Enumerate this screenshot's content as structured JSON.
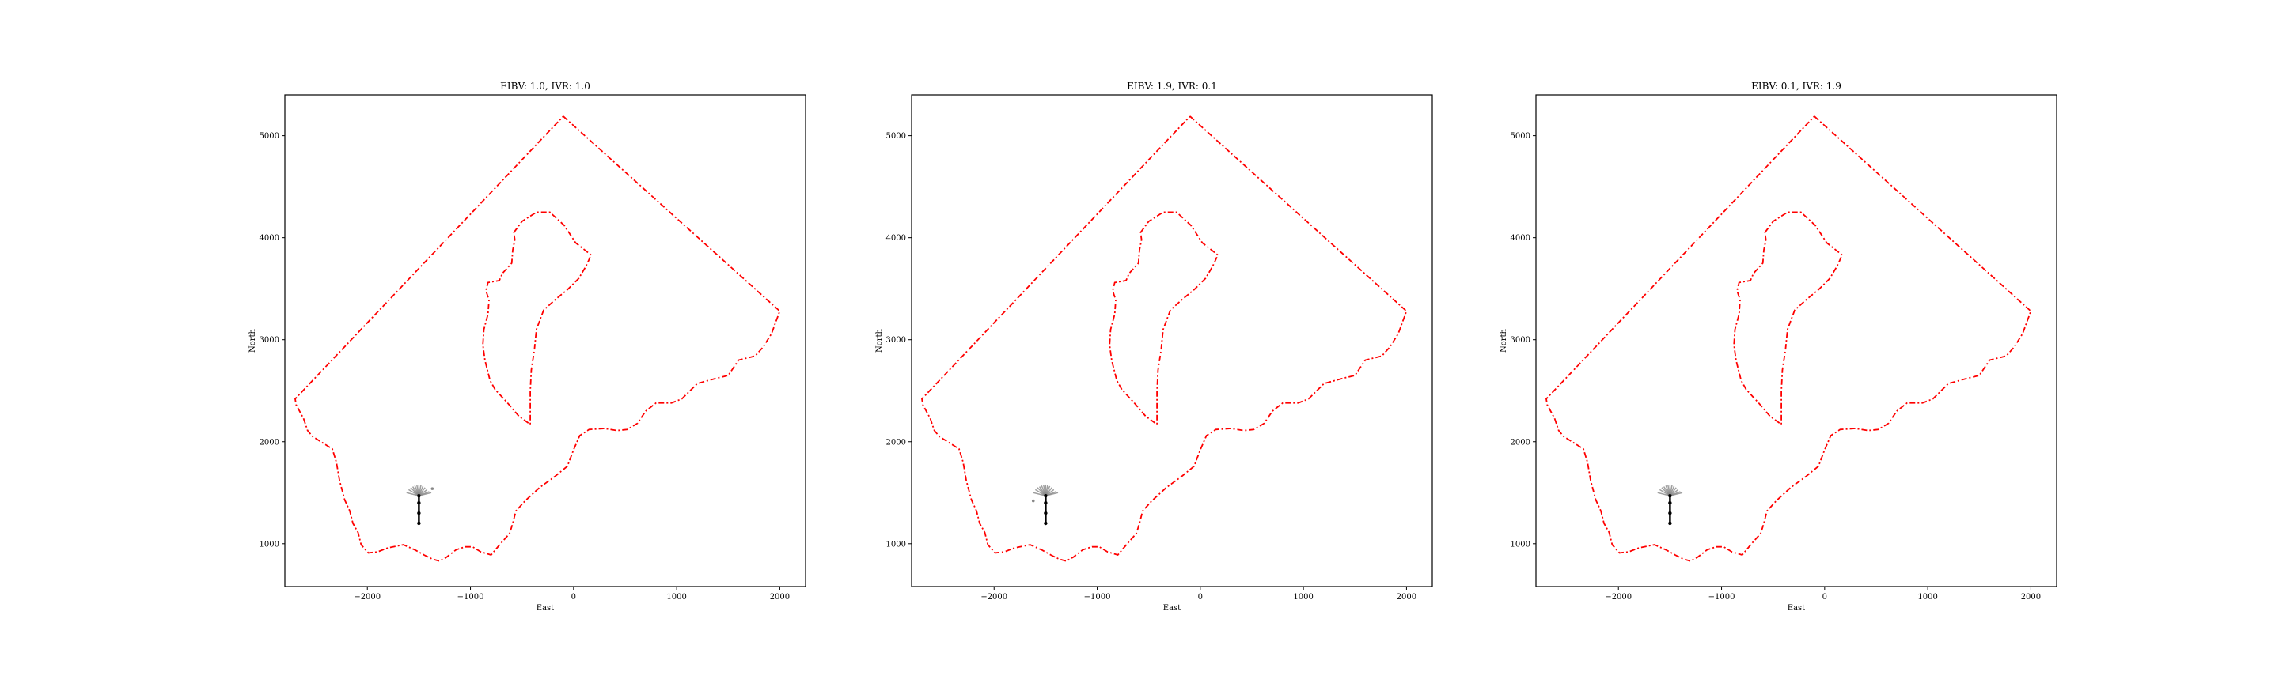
{
  "colors": {
    "boundary": "#ff0000",
    "path": "#000000",
    "fan": "#888888",
    "axis": "#000000",
    "background": "#ffffff"
  },
  "chart_data": [
    {
      "type": "line",
      "title": "EIBV: 1.0, IVR: 1.0",
      "xlabel": "East",
      "ylabel": "North",
      "xlim": [
        -2800,
        2250
      ],
      "ylim": [
        580,
        5400
      ],
      "xticks": [
        -2000,
        -1000,
        0,
        1000,
        2000
      ],
      "xtick_labels": [
        "−2000",
        "−1000",
        "0",
        "1000",
        "2000"
      ],
      "yticks": [
        1000,
        2000,
        3000,
        4000,
        5000
      ],
      "ytick_labels": [
        "1000",
        "2000",
        "3000",
        "4000",
        "5000"
      ],
      "grid": false,
      "outer_boundary": [
        [
          -100,
          5190
        ],
        [
          2000,
          3280
        ],
        [
          1920,
          3060
        ],
        [
          1840,
          2930
        ],
        [
          1760,
          2840
        ],
        [
          1600,
          2800
        ],
        [
          1500,
          2650
        ],
        [
          1380,
          2620
        ],
        [
          1200,
          2570
        ],
        [
          1050,
          2420
        ],
        [
          950,
          2380
        ],
        [
          800,
          2380
        ],
        [
          700,
          2300
        ],
        [
          620,
          2180
        ],
        [
          520,
          2120
        ],
        [
          420,
          2110
        ],
        [
          300,
          2130
        ],
        [
          150,
          2120
        ],
        [
          60,
          2060
        ],
        [
          0,
          1920
        ],
        [
          -60,
          1760
        ],
        [
          -180,
          1660
        ],
        [
          -330,
          1550
        ],
        [
          -470,
          1420
        ],
        [
          -560,
          1320
        ],
        [
          -590,
          1200
        ],
        [
          -620,
          1100
        ],
        [
          -700,
          1010
        ],
        [
          -800,
          890
        ],
        [
          -900,
          920
        ],
        [
          -980,
          970
        ],
        [
          -1050,
          970
        ],
        [
          -1140,
          940
        ],
        [
          -1230,
          870
        ],
        [
          -1300,
          830
        ],
        [
          -1370,
          850
        ],
        [
          -1450,
          890
        ],
        [
          -1540,
          940
        ],
        [
          -1650,
          990
        ],
        [
          -1800,
          960
        ],
        [
          -1900,
          920
        ],
        [
          -1990,
          910
        ],
        [
          -2060,
          990
        ],
        [
          -2090,
          1110
        ],
        [
          -2140,
          1200
        ],
        [
          -2170,
          1320
        ],
        [
          -2220,
          1430
        ],
        [
          -2270,
          1620
        ],
        [
          -2300,
          1800
        ],
        [
          -2340,
          1930
        ],
        [
          -2420,
          1980
        ],
        [
          -2530,
          2050
        ],
        [
          -2580,
          2110
        ],
        [
          -2620,
          2230
        ],
        [
          -2690,
          2360
        ],
        [
          -2700,
          2420
        ],
        [
          -100,
          5190
        ]
      ],
      "inner_boundary": [
        [
          -580,
          4050
        ],
        [
          -500,
          4160
        ],
        [
          -360,
          4250
        ],
        [
          -230,
          4250
        ],
        [
          -90,
          4120
        ],
        [
          20,
          3950
        ],
        [
          170,
          3830
        ],
        [
          120,
          3720
        ],
        [
          50,
          3600
        ],
        [
          -60,
          3490
        ],
        [
          -170,
          3400
        ],
        [
          -290,
          3290
        ],
        [
          -360,
          3100
        ],
        [
          -380,
          2900
        ],
        [
          -410,
          2700
        ],
        [
          -420,
          2490
        ],
        [
          -420,
          2290
        ],
        [
          -420,
          2170
        ],
        [
          -530,
          2250
        ],
        [
          -640,
          2380
        ],
        [
          -760,
          2510
        ],
        [
          -810,
          2600
        ],
        [
          -860,
          2800
        ],
        [
          -880,
          2950
        ],
        [
          -870,
          3100
        ],
        [
          -830,
          3250
        ],
        [
          -820,
          3390
        ],
        [
          -850,
          3480
        ],
        [
          -830,
          3560
        ],
        [
          -720,
          3580
        ],
        [
          -690,
          3650
        ],
        [
          -600,
          3750
        ],
        [
          -590,
          3880
        ],
        [
          -570,
          3980
        ],
        [
          -580,
          4050
        ]
      ],
      "trajectory": [
        [
          -1500,
          1200
        ],
        [
          -1500,
          1300
        ],
        [
          -1500,
          1400
        ],
        [
          -1500,
          1470
        ]
      ],
      "fan_endpoints": [
        [
          -1620,
          1500
        ],
        [
          -1600,
          1530
        ],
        [
          -1580,
          1550
        ],
        [
          -1560,
          1560
        ],
        [
          -1540,
          1570
        ],
        [
          -1520,
          1575
        ],
        [
          -1500,
          1580
        ],
        [
          -1480,
          1575
        ],
        [
          -1460,
          1565
        ],
        [
          -1440,
          1550
        ],
        [
          -1420,
          1530
        ],
        [
          -1400,
          1510
        ],
        [
          -1380,
          1500
        ]
      ],
      "fan_marker": [
        -1370,
        1540
      ]
    },
    {
      "type": "line",
      "title": "EIBV: 1.9, IVR: 0.1",
      "xlabel": "East",
      "ylabel": "North",
      "xlim": [
        -2800,
        2250
      ],
      "ylim": [
        580,
        5400
      ],
      "xticks": [
        -2000,
        -1000,
        0,
        1000,
        2000
      ],
      "xtick_labels": [
        "−2000",
        "−1000",
        "0",
        "1000",
        "2000"
      ],
      "yticks": [
        1000,
        2000,
        3000,
        4000,
        5000
      ],
      "ytick_labels": [
        "1000",
        "2000",
        "3000",
        "4000",
        "5000"
      ],
      "grid": false,
      "outer_boundary": [
        [
          -100,
          5190
        ],
        [
          2000,
          3280
        ],
        [
          1920,
          3060
        ],
        [
          1840,
          2930
        ],
        [
          1760,
          2840
        ],
        [
          1600,
          2800
        ],
        [
          1500,
          2650
        ],
        [
          1380,
          2620
        ],
        [
          1200,
          2570
        ],
        [
          1050,
          2420
        ],
        [
          950,
          2380
        ],
        [
          800,
          2380
        ],
        [
          700,
          2300
        ],
        [
          620,
          2180
        ],
        [
          520,
          2120
        ],
        [
          420,
          2110
        ],
        [
          300,
          2130
        ],
        [
          150,
          2120
        ],
        [
          60,
          2060
        ],
        [
          0,
          1920
        ],
        [
          -60,
          1760
        ],
        [
          -180,
          1660
        ],
        [
          -330,
          1550
        ],
        [
          -470,
          1420
        ],
        [
          -560,
          1320
        ],
        [
          -590,
          1200
        ],
        [
          -620,
          1100
        ],
        [
          -700,
          1010
        ],
        [
          -800,
          890
        ],
        [
          -900,
          920
        ],
        [
          -980,
          970
        ],
        [
          -1050,
          970
        ],
        [
          -1140,
          940
        ],
        [
          -1230,
          870
        ],
        [
          -1300,
          830
        ],
        [
          -1370,
          850
        ],
        [
          -1450,
          890
        ],
        [
          -1540,
          940
        ],
        [
          -1650,
          990
        ],
        [
          -1800,
          960
        ],
        [
          -1900,
          920
        ],
        [
          -1990,
          910
        ],
        [
          -2060,
          990
        ],
        [
          -2090,
          1110
        ],
        [
          -2140,
          1200
        ],
        [
          -2170,
          1320
        ],
        [
          -2220,
          1430
        ],
        [
          -2270,
          1620
        ],
        [
          -2300,
          1800
        ],
        [
          -2340,
          1930
        ],
        [
          -2420,
          1980
        ],
        [
          -2530,
          2050
        ],
        [
          -2580,
          2110
        ],
        [
          -2620,
          2230
        ],
        [
          -2690,
          2360
        ],
        [
          -2700,
          2420
        ],
        [
          -100,
          5190
        ]
      ],
      "inner_boundary": [
        [
          -580,
          4050
        ],
        [
          -500,
          4160
        ],
        [
          -360,
          4250
        ],
        [
          -230,
          4250
        ],
        [
          -90,
          4120
        ],
        [
          20,
          3950
        ],
        [
          170,
          3830
        ],
        [
          120,
          3720
        ],
        [
          50,
          3600
        ],
        [
          -60,
          3490
        ],
        [
          -170,
          3400
        ],
        [
          -290,
          3290
        ],
        [
          -360,
          3100
        ],
        [
          -380,
          2900
        ],
        [
          -410,
          2700
        ],
        [
          -420,
          2490
        ],
        [
          -420,
          2290
        ],
        [
          -420,
          2170
        ],
        [
          -530,
          2250
        ],
        [
          -640,
          2380
        ],
        [
          -760,
          2510
        ],
        [
          -810,
          2600
        ],
        [
          -860,
          2800
        ],
        [
          -880,
          2950
        ],
        [
          -870,
          3100
        ],
        [
          -830,
          3250
        ],
        [
          -820,
          3390
        ],
        [
          -850,
          3480
        ],
        [
          -830,
          3560
        ],
        [
          -720,
          3580
        ],
        [
          -690,
          3650
        ],
        [
          -600,
          3750
        ],
        [
          -590,
          3880
        ],
        [
          -570,
          3980
        ],
        [
          -580,
          4050
        ]
      ],
      "trajectory": [
        [
          -1500,
          1200
        ],
        [
          -1500,
          1300
        ],
        [
          -1500,
          1400
        ],
        [
          -1500,
          1470
        ]
      ],
      "fan_endpoints": [
        [
          -1620,
          1500
        ],
        [
          -1600,
          1530
        ],
        [
          -1580,
          1550
        ],
        [
          -1560,
          1560
        ],
        [
          -1540,
          1570
        ],
        [
          -1520,
          1575
        ],
        [
          -1500,
          1580
        ],
        [
          -1480,
          1575
        ],
        [
          -1460,
          1565
        ],
        [
          -1440,
          1550
        ],
        [
          -1420,
          1530
        ],
        [
          -1400,
          1510
        ],
        [
          -1380,
          1500
        ]
      ],
      "fan_marker": [
        -1620,
        1420
      ]
    },
    {
      "type": "line",
      "title": "EIBV: 0.1, IVR: 1.9",
      "xlabel": "East",
      "ylabel": "North",
      "xlim": [
        -2800,
        2250
      ],
      "ylim": [
        580,
        5400
      ],
      "xticks": [
        -2000,
        -1000,
        0,
        1000,
        2000
      ],
      "xtick_labels": [
        "−2000",
        "−1000",
        "0",
        "1000",
        "2000"
      ],
      "yticks": [
        1000,
        2000,
        3000,
        4000,
        5000
      ],
      "ytick_labels": [
        "1000",
        "2000",
        "3000",
        "4000",
        "5000"
      ],
      "grid": false,
      "outer_boundary": [
        [
          -100,
          5190
        ],
        [
          2000,
          3280
        ],
        [
          1920,
          3060
        ],
        [
          1840,
          2930
        ],
        [
          1760,
          2840
        ],
        [
          1600,
          2800
        ],
        [
          1500,
          2650
        ],
        [
          1380,
          2620
        ],
        [
          1200,
          2570
        ],
        [
          1050,
          2420
        ],
        [
          950,
          2380
        ],
        [
          800,
          2380
        ],
        [
          700,
          2300
        ],
        [
          620,
          2180
        ],
        [
          520,
          2120
        ],
        [
          420,
          2110
        ],
        [
          300,
          2130
        ],
        [
          150,
          2120
        ],
        [
          60,
          2060
        ],
        [
          0,
          1920
        ],
        [
          -60,
          1760
        ],
        [
          -180,
          1660
        ],
        [
          -330,
          1550
        ],
        [
          -470,
          1420
        ],
        [
          -560,
          1320
        ],
        [
          -590,
          1200
        ],
        [
          -620,
          1100
        ],
        [
          -700,
          1010
        ],
        [
          -800,
          890
        ],
        [
          -900,
          920
        ],
        [
          -980,
          970
        ],
        [
          -1050,
          970
        ],
        [
          -1140,
          940
        ],
        [
          -1230,
          870
        ],
        [
          -1300,
          830
        ],
        [
          -1370,
          850
        ],
        [
          -1450,
          890
        ],
        [
          -1540,
          940
        ],
        [
          -1650,
          990
        ],
        [
          -1800,
          960
        ],
        [
          -1900,
          920
        ],
        [
          -1990,
          910
        ],
        [
          -2060,
          990
        ],
        [
          -2090,
          1110
        ],
        [
          -2140,
          1200
        ],
        [
          -2170,
          1320
        ],
        [
          -2220,
          1430
        ],
        [
          -2270,
          1620
        ],
        [
          -2300,
          1800
        ],
        [
          -2340,
          1930
        ],
        [
          -2420,
          1980
        ],
        [
          -2530,
          2050
        ],
        [
          -2580,
          2110
        ],
        [
          -2620,
          2230
        ],
        [
          -2690,
          2360
        ],
        [
          -2700,
          2420
        ],
        [
          -100,
          5190
        ]
      ],
      "inner_boundary": [
        [
          -580,
          4050
        ],
        [
          -500,
          4160
        ],
        [
          -360,
          4250
        ],
        [
          -230,
          4250
        ],
        [
          -90,
          4120
        ],
        [
          20,
          3950
        ],
        [
          170,
          3830
        ],
        [
          120,
          3720
        ],
        [
          50,
          3600
        ],
        [
          -60,
          3490
        ],
        [
          -170,
          3400
        ],
        [
          -290,
          3290
        ],
        [
          -360,
          3100
        ],
        [
          -380,
          2900
        ],
        [
          -410,
          2700
        ],
        [
          -420,
          2490
        ],
        [
          -420,
          2290
        ],
        [
          -420,
          2170
        ],
        [
          -530,
          2250
        ],
        [
          -640,
          2380
        ],
        [
          -760,
          2510
        ],
        [
          -810,
          2600
        ],
        [
          -860,
          2800
        ],
        [
          -880,
          2950
        ],
        [
          -870,
          3100
        ],
        [
          -830,
          3250
        ],
        [
          -820,
          3390
        ],
        [
          -850,
          3480
        ],
        [
          -830,
          3560
        ],
        [
          -720,
          3580
        ],
        [
          -690,
          3650
        ],
        [
          -600,
          3750
        ],
        [
          -590,
          3880
        ],
        [
          -570,
          3980
        ],
        [
          -580,
          4050
        ]
      ],
      "trajectory": [
        [
          -1500,
          1200
        ],
        [
          -1500,
          1300
        ],
        [
          -1500,
          1400
        ],
        [
          -1500,
          1470
        ]
      ],
      "fan_endpoints": [
        [
          -1620,
          1500
        ],
        [
          -1600,
          1530
        ],
        [
          -1580,
          1550
        ],
        [
          -1560,
          1560
        ],
        [
          -1540,
          1570
        ],
        [
          -1520,
          1575
        ],
        [
          -1500,
          1580
        ],
        [
          -1480,
          1575
        ],
        [
          -1460,
          1565
        ],
        [
          -1440,
          1550
        ],
        [
          -1420,
          1530
        ],
        [
          -1400,
          1510
        ],
        [
          -1380,
          1500
        ]
      ],
      "fan_marker": null
    }
  ]
}
